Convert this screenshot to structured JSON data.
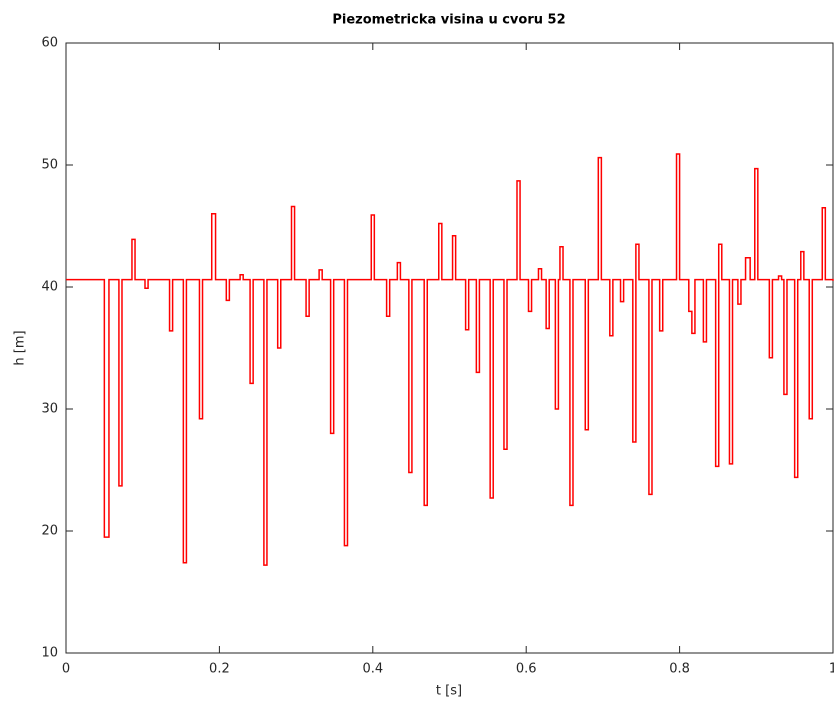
{
  "chart_data": {
    "type": "line",
    "drawstyle": "steps-post",
    "title": "Piezometricka visina u cvoru 52",
    "xlabel": "t [s]",
    "ylabel": "h [m]",
    "color": "#ff0000",
    "x": [
      0,
      0.05,
      0.056,
      0.069,
      0.073,
      0.086,
      0.09,
      0.103,
      0.107,
      0.135,
      0.139,
      0.153,
      0.157,
      0.174,
      0.178,
      0.19,
      0.195,
      0.209,
      0.213,
      0.227,
      0.231,
      0.24,
      0.244,
      0.258,
      0.262,
      0.276,
      0.28,
      0.294,
      0.298,
      0.313,
      0.317,
      0.33,
      0.334,
      0.345,
      0.349,
      0.363,
      0.367,
      0.398,
      0.402,
      0.418,
      0.422,
      0.432,
      0.436,
      0.447,
      0.451,
      0.467,
      0.471,
      0.486,
      0.49,
      0.504,
      0.508,
      0.521,
      0.525,
      0.535,
      0.539,
      0.553,
      0.557,
      0.571,
      0.575,
      0.588,
      0.592,
      0.603,
      0.607,
      0.616,
      0.62,
      0.626,
      0.63,
      0.638,
      0.642,
      0.644,
      0.648,
      0.657,
      0.661,
      0.677,
      0.681,
      0.694,
      0.698,
      0.709,
      0.713,
      0.723,
      0.727,
      0.739,
      0.743,
      0.747,
      0.76,
      0.764,
      0.774,
      0.778,
      0.796,
      0.8,
      0.812,
      0.816,
      0.82,
      0.831,
      0.835,
      0.847,
      0.851,
      0.855,
      0.865,
      0.869,
      0.876,
      0.88,
      0.886,
      0.892,
      0.898,
      0.902,
      0.917,
      0.921,
      0.929,
      0.933,
      0.936,
      0.94,
      0.95,
      0.954,
      0.958,
      0.962,
      0.969,
      0.973,
      0.986,
      0.99,
      1.0
    ],
    "values": [
      40.6,
      19.5,
      40.6,
      23.7,
      40.6,
      43.9,
      40.6,
      39.9,
      40.6,
      36.4,
      40.6,
      17.4,
      40.6,
      29.2,
      40.6,
      46.0,
      40.6,
      38.9,
      40.6,
      41.0,
      40.6,
      32.1,
      40.6,
      17.2,
      40.6,
      35.0,
      40.6,
      46.6,
      40.6,
      37.6,
      40.6,
      41.4,
      40.6,
      28.0,
      40.6,
      18.8,
      40.6,
      45.9,
      40.6,
      37.6,
      40.6,
      42.0,
      40.6,
      24.8,
      40.6,
      22.1,
      40.6,
      45.2,
      40.6,
      44.2,
      40.6,
      36.5,
      40.6,
      33.0,
      40.6,
      22.7,
      40.6,
      26.7,
      40.6,
      48.7,
      40.6,
      38.0,
      40.6,
      41.5,
      40.6,
      36.6,
      40.6,
      30.0,
      40.6,
      43.3,
      40.6,
      22.1,
      40.6,
      28.3,
      40.6,
      50.6,
      40.6,
      36.0,
      40.6,
      38.8,
      40.6,
      27.3,
      43.5,
      40.6,
      23.0,
      40.6,
      36.4,
      40.6,
      50.9,
      40.6,
      38.0,
      36.2,
      40.6,
      35.5,
      40.6,
      25.3,
      43.5,
      40.6,
      25.5,
      40.6,
      38.6,
      40.6,
      42.4,
      40.6,
      49.7,
      40.6,
      34.2,
      40.6,
      40.9,
      40.6,
      31.2,
      40.6,
      24.4,
      40.6,
      42.9,
      40.6,
      29.2,
      40.6,
      46.5,
      40.6,
      40.5
    ],
    "xlim": [
      0,
      1
    ],
    "xticks": [
      0,
      0.2,
      0.4,
      0.6,
      0.8,
      1
    ],
    "ylim": [
      10,
      60
    ],
    "yticks": [
      10,
      20,
      30,
      40,
      50,
      60
    ],
    "grid": false
  }
}
